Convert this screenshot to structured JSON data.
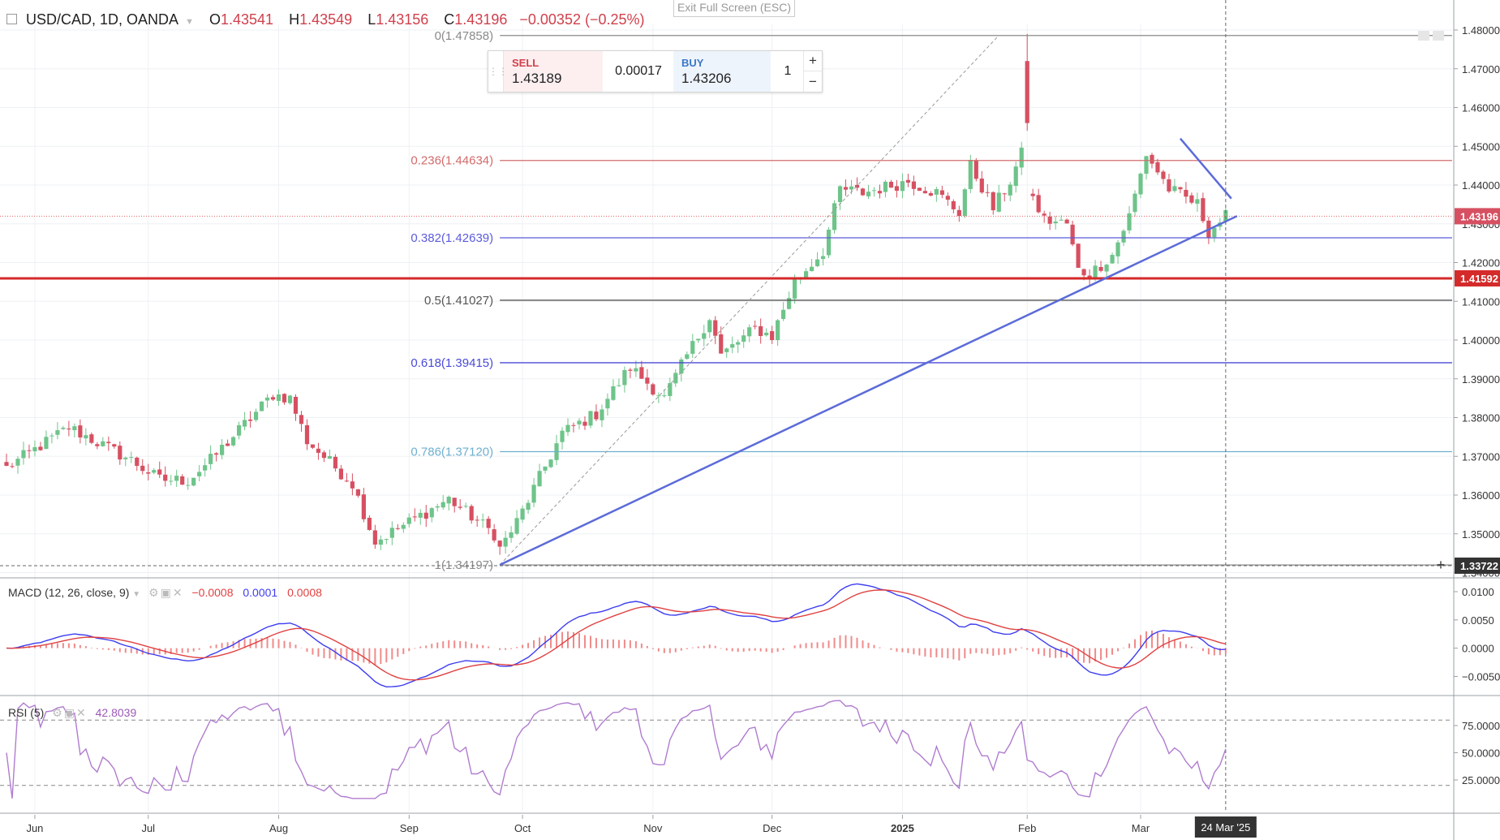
{
  "header": {
    "symbol": "USD/CAD, 1D, OANDA",
    "open_label": "O",
    "open": "1.43541",
    "high_label": "H",
    "high": "1.43549",
    "low_label": "L",
    "low": "1.43156",
    "close_label": "C",
    "close": "1.43196",
    "change": "−0.00352 (−0.25%)"
  },
  "exit_fullscreen": "Exit Full Screen (ESC)",
  "trade_panel": {
    "sell_label": "SELL",
    "sell_price": "1.43189",
    "spread": "0.00017",
    "buy_label": "BUY",
    "buy_price": "1.43206",
    "quantity": "1",
    "plus": "+",
    "minus": "−"
  },
  "colors": {
    "up": "#6ec48a",
    "down": "#d65061",
    "trend": "#5b6bd9",
    "support": "#d42a2a",
    "macd": "#3d3df0",
    "signal": "#e04141",
    "rsi": "#b07ccf"
  },
  "macd_label": "MACD (12, 26, close, 9)",
  "macd_values": [
    "−0.0008",
    "0.0001",
    "0.0008"
  ],
  "rsi_label": "RSI (5)",
  "rsi_value": "42.8039",
  "price_badge": "1.43196",
  "support_badge": "1.41592",
  "cursor_badge": "1.33722",
  "date_badge": "24 Mar '25",
  "chart_data": {
    "type": "candlestick",
    "symbol": "USD/CAD",
    "interval": "1D",
    "y_range": [
      1.3372,
      1.4803
    ],
    "y_ticks": [
      "1.48000",
      "1.47000",
      "1.46000",
      "1.45000",
      "1.44000",
      "1.43000",
      "1.42000",
      "1.41000",
      "1.40000",
      "1.39000",
      "1.38000",
      "1.37000",
      "1.36000",
      "1.35000",
      "1.34000"
    ],
    "x_labels": [
      "Jun",
      "Jul",
      "Aug",
      "Sep",
      "Oct",
      "Nov",
      "Dec",
      "2025",
      "Feb",
      "Mar"
    ],
    "close_waypoints": [
      [
        "2024-05-27",
        1.367
      ],
      [
        "2024-06-11",
        1.3775
      ],
      [
        "2024-06-26",
        1.369
      ],
      [
        "2024-07-03",
        1.364
      ],
      [
        "2024-07-10",
        1.3638
      ],
      [
        "2024-07-16",
        1.369
      ],
      [
        "2024-07-31",
        1.386
      ],
      [
        "2024-08-05",
        1.385
      ],
      [
        "2024-08-08",
        1.374
      ],
      [
        "2024-08-20",
        1.363
      ],
      [
        "2024-08-26",
        1.348
      ],
      [
        "2024-09-03",
        1.353
      ],
      [
        "2024-09-12",
        1.359
      ],
      [
        "2024-09-24",
        1.35
      ],
      [
        "2024-09-25",
        1.3462
      ],
      [
        "2024-09-30",
        1.353
      ],
      [
        "2024-10-10",
        1.376
      ],
      [
        "2024-10-18",
        1.381
      ],
      [
        "2024-10-28",
        1.393
      ],
      [
        "2024-11-05",
        1.385
      ],
      [
        "2024-11-11",
        1.396
      ],
      [
        "2024-11-15",
        1.406
      ],
      [
        "2024-11-19",
        1.396
      ],
      [
        "2024-11-27",
        1.403
      ],
      [
        "2024-12-02",
        1.401
      ],
      [
        "2024-12-06",
        1.415
      ],
      [
        "2024-12-13",
        1.423
      ],
      [
        "2024-12-18",
        1.439
      ],
      [
        "2024-12-24",
        1.438
      ],
      [
        "2025-01-03",
        1.441
      ],
      [
        "2025-01-10",
        1.438
      ],
      [
        "2025-01-16",
        1.433
      ],
      [
        "2025-01-20",
        1.445
      ],
      [
        "2025-01-24",
        1.434
      ],
      [
        "2025-01-29",
        1.441
      ],
      [
        "2025-01-31",
        1.448
      ],
      [
        "2025-02-03",
        1.439
      ],
      [
        "2025-02-06",
        1.431
      ],
      [
        "2025-02-12",
        1.43
      ],
      [
        "2025-02-14",
        1.418
      ],
      [
        "2025-02-18",
        1.417
      ],
      [
        "2025-02-24",
        1.422
      ],
      [
        "2025-02-27",
        1.432
      ],
      [
        "2025-03-04",
        1.448
      ],
      [
        "2025-03-10",
        1.439
      ],
      [
        "2025-03-17",
        1.435
      ],
      [
        "2025-03-19",
        1.428
      ],
      [
        "2025-03-24",
        1.432
      ]
    ],
    "fibonacci": [
      {
        "label": "0(1.47858)",
        "value": 1.47858,
        "color": "#8a8a8a"
      },
      {
        "label": "0.236(1.44634)",
        "value": 1.44634,
        "color": "#d26b6b"
      },
      {
        "label": "0.382(1.42639)",
        "value": 1.42639,
        "color": "#5b5bdc"
      },
      {
        "label": "0.5(1.41027)",
        "value": 1.41027,
        "color": "#555555"
      },
      {
        "label": "0.618(1.39415)",
        "value": 1.39415,
        "color": "#4a4ad8"
      },
      {
        "label": "0.786(1.37120)",
        "value": 1.3712,
        "color": "#6fb0d0"
      },
      {
        "label": "1(1.34197)",
        "value": 1.34197,
        "color": "#8a8a8a"
      }
    ],
    "support_level": 1.41592,
    "current_price": 1.43196,
    "trendlines": [
      {
        "from": [
          "2024-09-25",
          1.342
        ],
        "to": [
          "2025-03-26",
          1.432
        ],
        "color": "#5b6bd9"
      },
      {
        "from": [
          "2025-03-12",
          1.452
        ],
        "to": [
          "2025-03-25",
          1.4365
        ],
        "color": "#5b6bd9"
      }
    ],
    "fib_diagonal": {
      "from": [
        "2024-09-25",
        1.342
      ],
      "to": [
        "2025-01-27",
        1.4786
      ]
    },
    "macd": {
      "y_ticks": [
        "0.0100",
        "0.0050",
        "0.0000",
        "−0.0050"
      ],
      "y_range": [
        -0.0078,
        0.0115
      ]
    },
    "rsi": {
      "y_ticks": [
        "75.0000",
        "50.0000",
        "25.0000"
      ],
      "y_range": [
        5,
        100
      ],
      "bands": [
        80,
        20
      ]
    }
  }
}
